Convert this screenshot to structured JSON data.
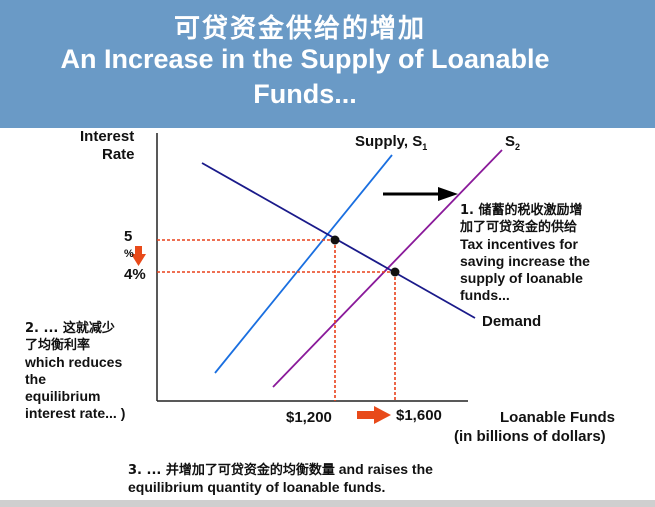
{
  "header": {
    "title_cn": "可贷资金供给的增加",
    "title_en_line1": "An Increase in the Supply of Loanable",
    "title_en_line2": "Funds..."
  },
  "axes": {
    "y_label_line1": "Interest",
    "y_label_line2": "Rate",
    "x_label_line1": "Loanable Funds",
    "x_label_line2": "(in billions of dollars)"
  },
  "curves": {
    "supply1_label": "Supply, S",
    "supply1_sub": "1",
    "supply2_label": "S",
    "supply2_sub": "2",
    "demand_label": "Demand"
  },
  "ticks": {
    "rate_old_top": "5",
    "rate_old_bottom": "%",
    "rate_new": "4%",
    "qty_old": "$1,200",
    "qty_new": "$1,600"
  },
  "notes": {
    "note1_cn_line1": "1. 储蓄的税收激励增",
    "note1_cn_line2": "加了可贷资金的供给",
    "note1_en_line1": "Tax incentives for",
    "note1_en_line2": "saving increase the",
    "note1_en_line3": "supply of loanable",
    "note1_en_line4": "funds...",
    "note2_cn_line1": "2. ... 这就减少",
    "note2_cn_line2": "了均衡利率",
    "note2_en_line1": "which reduces",
    "note2_en_line2": "the",
    "note2_en_line3": "equilibrium",
    "note2_en_line4": "interest rate... )",
    "note3_line1_cn": "3. ... 并增加了可贷资金的均衡数量",
    "note3_line1_en": " and raises the",
    "note3_line2": "equilibrium quantity of loanable funds."
  },
  "colors": {
    "header_bg": "#6a9ac6",
    "supply1": "#1a6fe0",
    "supply2": "#8a1a9a",
    "demand": "#1a1a8a",
    "guides": "#e8401a",
    "arrows": "#e84a1a"
  }
}
